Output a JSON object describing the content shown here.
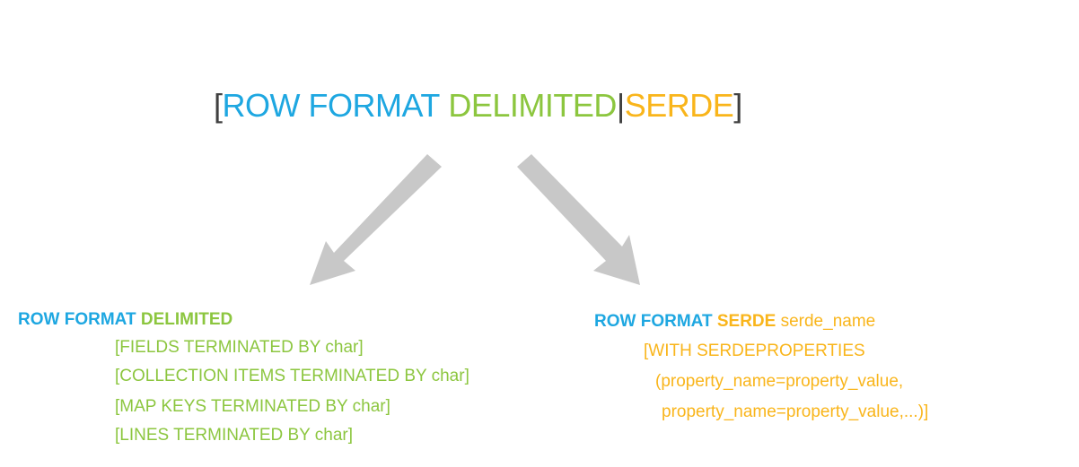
{
  "title": {
    "open_bracket": "[",
    "row_format": "ROW FORMAT",
    "delimited": "DELIMITED",
    "pipe": "|",
    "serde": "SERDE",
    "close_bracket": "]"
  },
  "left": {
    "head_row_format": "ROW FORMAT",
    "head_delimited": "DELIMITED",
    "lines": [
      "[FIELDS TERMINATED BY char]",
      "[COLLECTION ITEMS TERMINATED BY char]",
      "[MAP KEYS TERMINATED BY char]",
      "[LINES TERMINATED BY char]"
    ]
  },
  "right": {
    "head_row_format": "ROW FORMAT",
    "head_serde": "SERDE",
    "head_name": "serde_name",
    "lines": [
      "[WITH SERDEPROPERTIES",
      "(property_name=property_value,",
      "property_name=property_value,...)]"
    ]
  },
  "colors": {
    "blue": "#1ea7e1",
    "green": "#8cc63f",
    "gold": "#f9b51b",
    "arrow": "#c8c8c8"
  }
}
